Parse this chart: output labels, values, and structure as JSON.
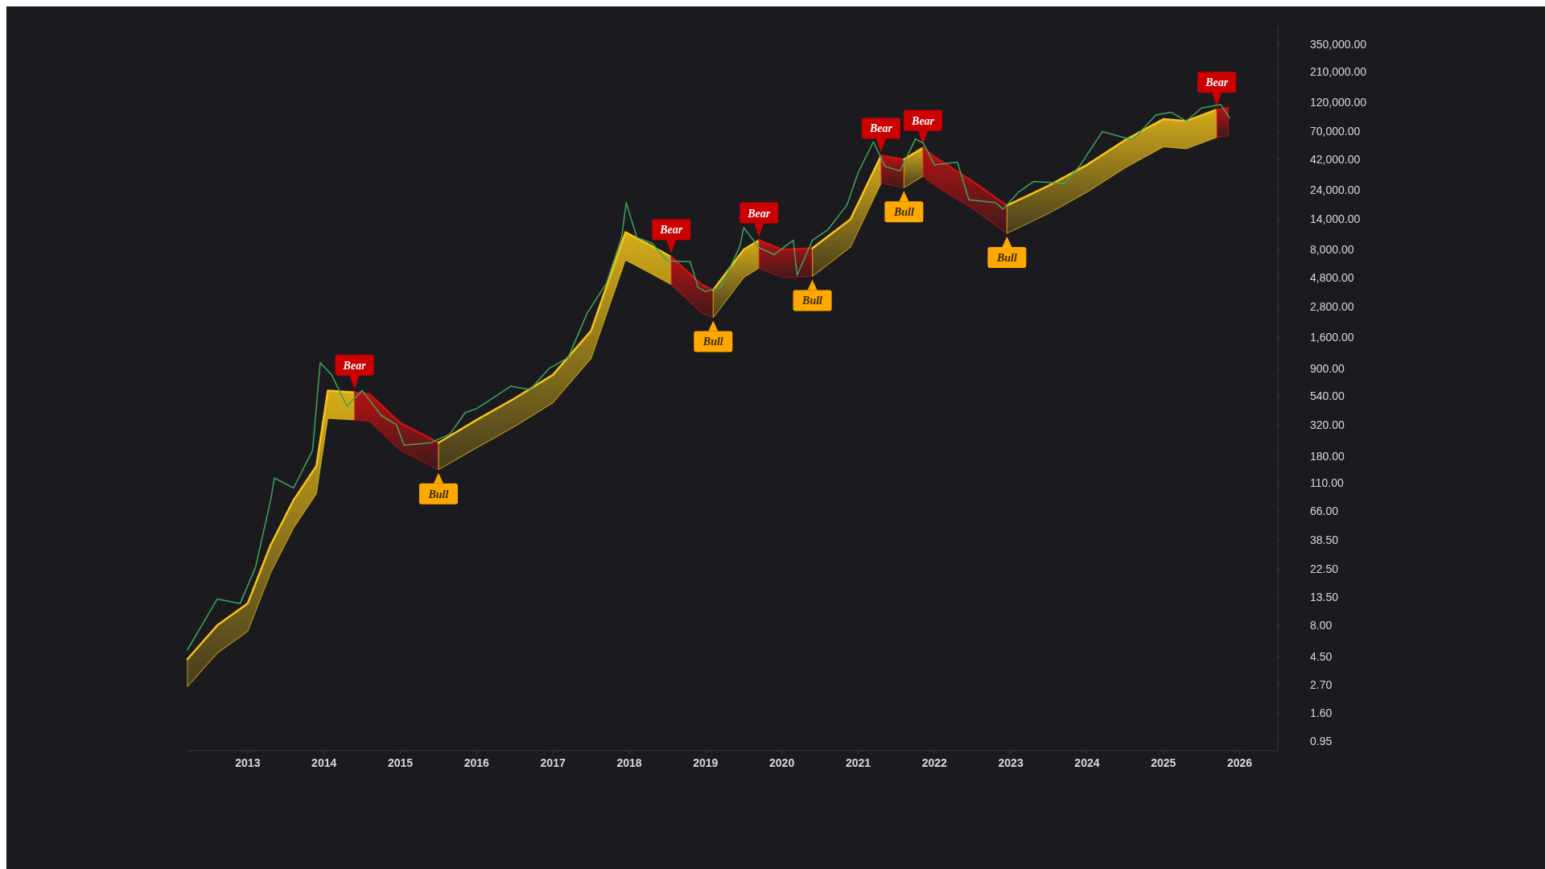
{
  "chart_data": {
    "type": "line",
    "log": "y",
    "grid": false,
    "marker": "none",
    "xlim": [
      2012.2,
      2026.5
    ],
    "xticks": [
      2013,
      2014,
      2015,
      2016,
      2017,
      2018,
      2019,
      2020,
      2021,
      2022,
      2023,
      2024,
      2025,
      2026
    ],
    "ylim": [
      0.8,
      490000
    ],
    "yticks": [
      {
        "value": 0.95,
        "label": "0.95"
      },
      {
        "value": 1.6,
        "label": "1.60"
      },
      {
        "value": 2.7,
        "label": "2.70"
      },
      {
        "value": 4.5,
        "label": "4.50"
      },
      {
        "value": 8,
        "label": "8.00"
      },
      {
        "value": 13.5,
        "label": "13.50"
      },
      {
        "value": 22.5,
        "label": "22.50"
      },
      {
        "value": 38.5,
        "label": "38.50"
      },
      {
        "value": 66,
        "label": "66.00"
      },
      {
        "value": 110,
        "label": "110.00"
      },
      {
        "value": 180,
        "label": "180.00"
      },
      {
        "value": 320,
        "label": "320.00"
      },
      {
        "value": 540,
        "label": "540.00"
      },
      {
        "value": 900,
        "label": "900.00"
      },
      {
        "value": 1600,
        "label": "1,600.00"
      },
      {
        "value": 2800,
        "label": "2,800.00"
      },
      {
        "value": 4800,
        "label": "4,800.00"
      },
      {
        "value": 8000,
        "label": "8,000.00"
      },
      {
        "value": 14000,
        "label": "14,000.00"
      },
      {
        "value": 24000,
        "label": "24,000.00"
      },
      {
        "value": 42000,
        "label": "42,000.00"
      },
      {
        "value": 70000,
        "label": "70,000.00"
      },
      {
        "value": 120000,
        "label": "120,000.00"
      },
      {
        "value": 210000,
        "label": "210,000.00"
      },
      {
        "value": 350000,
        "label": "350,000.00"
      }
    ],
    "series": [
      {
        "color": "#3fa55a",
        "x": [
          2012.21,
          2012.6,
          2012.9,
          2013.1,
          2013.3,
          2013.35,
          2013.6,
          2013.85,
          2013.95,
          2014.1,
          2014.3,
          2014.5,
          2014.75,
          2014.95,
          2015.05,
          2015.4,
          2015.65,
          2015.85,
          2016.0,
          2016.45,
          2016.7,
          2016.95,
          2017.2,
          2017.45,
          2017.7,
          2017.9,
          2017.96,
          2018.1,
          2018.3,
          2018.5,
          2018.8,
          2018.9,
          2019.0,
          2019.2,
          2019.45,
          2019.5,
          2019.7,
          2019.9,
          2020.15,
          2020.2,
          2020.4,
          2020.6,
          2020.85,
          2021.0,
          2021.2,
          2021.35,
          2021.55,
          2021.75,
          2021.85,
          2022.0,
          2022.3,
          2022.45,
          2022.8,
          2022.9,
          2023.1,
          2023.3,
          2023.7,
          2023.9,
          2024.2,
          2024.6,
          2024.9,
          2025.1,
          2025.3,
          2025.5,
          2025.75,
          2025.87
        ],
        "values": [
          5.1,
          13,
          12,
          23,
          80,
          120,
          100,
          200,
          1000,
          800,
          450,
          600,
          380,
          320,
          220,
          230,
          270,
          400,
          430,
          650,
          610,
          900,
          1100,
          2500,
          4300,
          10000,
          19000,
          10000,
          9000,
          6500,
          6400,
          4000,
          3700,
          4000,
          8500,
          12000,
          8300,
          7300,
          9500,
          5000,
          9500,
          11500,
          18000,
          33000,
          58000,
          37000,
          34000,
          61000,
          57000,
          38000,
          40000,
          20000,
          19000,
          16800,
          23000,
          28000,
          27000,
          37000,
          70000,
          60000,
          95000,
          100000,
          85000,
          108000,
          115000,
          90000
        ]
      },
      {
        "color": "#f5c518",
        "x": [
          2012.21,
          2012.6,
          2013.0,
          2013.3,
          2013.6,
          2013.9,
          2014.05,
          2014.4
        ],
        "values": [
          4.3,
          8,
          12,
          35,
          80,
          150,
          600,
          580
        ],
        "lower": [
          2.6,
          4.8,
          7.2,
          21,
          48,
          90,
          360,
          350
        ],
        "upper": [
          4.3,
          8,
          12,
          35,
          80,
          150,
          600,
          580
        ]
      },
      {
        "color": "#d01010",
        "x": [
          2014.4,
          2014.6,
          2015.0,
          2015.5
        ],
        "values": [
          580,
          560,
          330,
          230
        ],
        "lower": [
          350,
          340,
          200,
          140
        ],
        "upper": [
          580,
          560,
          330,
          230
        ]
      },
      {
        "color": "#f5c518",
        "x": [
          2015.5,
          2016.0,
          2016.5,
          2017.0,
          2017.5,
          2017.95,
          2018.3,
          2018.55
        ],
        "values": [
          230,
          350,
          520,
          800,
          1800,
          11000,
          8500,
          7000
        ],
        "lower": [
          140,
          210,
          310,
          480,
          1080,
          6600,
          5100,
          4200
        ],
        "upper": [
          230,
          350,
          520,
          800,
          1800,
          11000,
          8500,
          7000
        ]
      },
      {
        "color": "#d01010",
        "x": [
          2018.55,
          2018.95,
          2019.1
        ],
        "values": [
          7000,
          4200,
          3800
        ],
        "lower": [
          4200,
          2500,
          2300
        ],
        "upper": [
          7000,
          4200,
          3800
        ]
      },
      {
        "color": "#f5c518",
        "x": [
          2019.1,
          2019.5,
          2019.7
        ],
        "values": [
          3800,
          8000,
          9500
        ],
        "lower": [
          2300,
          4800,
          5700
        ],
        "upper": [
          3800,
          8000,
          9500
        ]
      },
      {
        "color": "#d01010",
        "x": [
          2019.7,
          2020.0,
          2020.4
        ],
        "values": [
          9500,
          8000,
          8200
        ],
        "lower": [
          5700,
          4800,
          4900
        ],
        "upper": [
          9500,
          8000,
          8200
        ]
      },
      {
        "color": "#f5c518",
        "x": [
          2020.4,
          2020.9,
          2021.3
        ],
        "values": [
          8200,
          14000,
          45000
        ],
        "lower": [
          4900,
          8400,
          27000
        ],
        "upper": [
          8200,
          14000,
          45000
        ]
      },
      {
        "color": "#d01010",
        "x": [
          2021.3,
          2021.6
        ],
        "values": [
          45000,
          42000
        ],
        "lower": [
          27000,
          25000
        ],
        "upper": [
          45000,
          42000
        ]
      },
      {
        "color": "#f5c518",
        "x": [
          2021.6,
          2021.85
        ],
        "values": [
          42000,
          52000
        ],
        "lower": [
          25000,
          31000
        ],
        "upper": [
          42000,
          52000
        ]
      },
      {
        "color": "#d01010",
        "x": [
          2021.85,
          2022.0,
          2022.5,
          2022.95
        ],
        "values": [
          52000,
          44000,
          28000,
          18000
        ],
        "lower": [
          31000,
          26000,
          17000,
          10800
        ],
        "upper": [
          52000,
          44000,
          28000,
          18000
        ]
      },
      {
        "color": "#f5c518",
        "x": [
          2022.95,
          2023.5,
          2024.0,
          2024.5,
          2025.0,
          2025.3,
          2025.7
        ],
        "values": [
          18000,
          26000,
          38000,
          60000,
          88000,
          85000,
          105000
        ],
        "lower": [
          10800,
          15600,
          23000,
          36000,
          53000,
          51000,
          63000
        ],
        "upper": [
          18000,
          26000,
          38000,
          60000,
          88000,
          85000,
          105000
        ]
      },
      {
        "color": "#d01010",
        "x": [
          2025.7,
          2025.85
        ],
        "values": [
          105000,
          108000
        ],
        "lower": [
          63000,
          65000
        ],
        "upper": [
          105000,
          108000
        ]
      }
    ],
    "annotations": [
      {
        "text": "Bear",
        "x": 2014.4,
        "y": 580
      },
      {
        "text": "Bull",
        "x": 2015.5,
        "y": 140
      },
      {
        "text": "Bear",
        "x": 2018.55,
        "y": 7000
      },
      {
        "text": "Bull",
        "x": 2019.1,
        "y": 2300
      },
      {
        "text": "Bear",
        "x": 2019.7,
        "y": 9500
      },
      {
        "text": "Bull",
        "x": 2020.4,
        "y": 4900
      },
      {
        "text": "Bear",
        "x": 2021.3,
        "y": 45000
      },
      {
        "text": "Bull",
        "x": 2021.6,
        "y": 25000
      },
      {
        "text": "Bear",
        "x": 2021.85,
        "y": 52000
      },
      {
        "text": "Bull",
        "x": 2022.95,
        "y": 10800
      },
      {
        "text": "Bear",
        "x": 2025.7,
        "y": 105000
      }
    ]
  }
}
